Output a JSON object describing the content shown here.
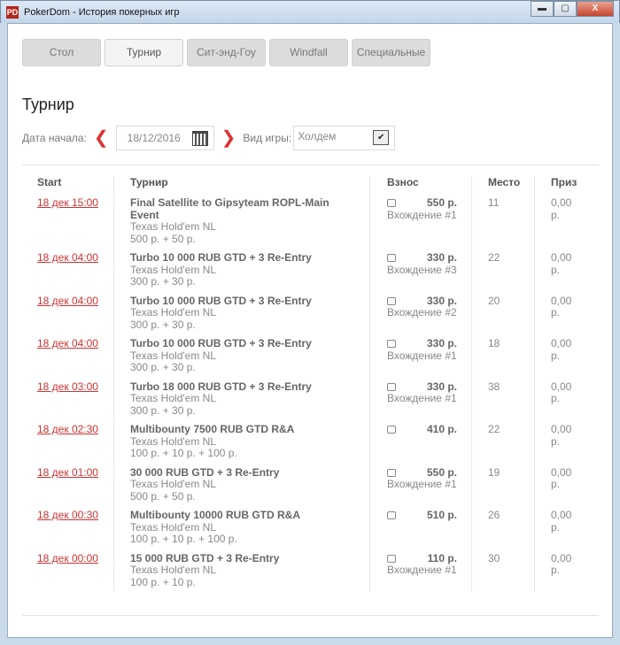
{
  "window": {
    "title": "PokerDom - История покерных игр"
  },
  "tabs": [
    {
      "label": "Стол"
    },
    {
      "label": "Турнир",
      "active": true
    },
    {
      "label": "Сит-энд-Гоу"
    },
    {
      "label": "Windfall"
    },
    {
      "label": "Специальные"
    }
  ],
  "heading": "Турнир",
  "filters": {
    "date_label": "Дата начала:",
    "date_value": "18/12/2016",
    "game_label": "Вид игры:",
    "game_value": "Холдем"
  },
  "columns": [
    "Start",
    "Турнир",
    "Взнос",
    "Место",
    "Приз"
  ],
  "rows": [
    {
      "start": "18 дек 15:00",
      "name": [
        "Final Satellite to Gipsyteam ROPL-Main",
        "Event"
      ],
      "game": "Texas Hold'em NL",
      "buyin": "500 р. + 50 р.",
      "fee": "550 р.",
      "entry": "Вхождение #1",
      "place": "11",
      "prize": [
        "0,00",
        "р."
      ]
    },
    {
      "start": "18 дек 04:00",
      "name": [
        "Turbo 10 000 RUB GTD + 3 Re-Entry"
      ],
      "game": "Texas Hold'em NL",
      "buyin": "300 р. + 30 р.",
      "fee": "330 р.",
      "entry": "Вхождение #3",
      "place": "22",
      "prize": [
        "0,00",
        "р."
      ]
    },
    {
      "start": "18 дек 04:00",
      "name": [
        "Turbo 10 000 RUB GTD + 3 Re-Entry"
      ],
      "game": "Texas Hold'em NL",
      "buyin": "300 р. + 30 р.",
      "fee": "330 р.",
      "entry": "Вхождение #2",
      "place": "20",
      "prize": [
        "0,00",
        "р."
      ]
    },
    {
      "start": "18 дек 04:00",
      "name": [
        "Turbo 10 000 RUB GTD + 3 Re-Entry"
      ],
      "game": "Texas Hold'em NL",
      "buyin": "300 р. + 30 р.",
      "fee": "330 р.",
      "entry": "Вхождение #1",
      "place": "18",
      "prize": [
        "0,00",
        "р."
      ]
    },
    {
      "start": "18 дек 03:00",
      "name": [
        "Turbo 18 000 RUB GTD + 3 Re-Entry"
      ],
      "game": "Texas Hold'em NL",
      "buyin": "300 р. + 30 р.",
      "fee": "330 р.",
      "entry": "Вхождение #1",
      "place": "38",
      "prize": [
        "0,00",
        "р."
      ]
    },
    {
      "start": "18 дек 02:30",
      "name": [
        "Multibounty 7500 RUB GTD R&A"
      ],
      "game": "Texas Hold'em NL",
      "buyin": "100 р. + 10 р. + 100 р.",
      "fee": "410 р.",
      "entry": "",
      "place": "22",
      "prize": [
        "0,00",
        "р."
      ]
    },
    {
      "start": "18 дек 01:00",
      "name": [
        "30 000 RUB GTD + 3 Re-Entry"
      ],
      "game": "Texas Hold'em NL",
      "buyin": "500 р. + 50 р.",
      "fee": "550 р.",
      "entry": "Вхождение #1",
      "place": "19",
      "prize": [
        "0,00",
        "р."
      ]
    },
    {
      "start": "18 дек 00:30",
      "name": [
        "Multibounty 10000 RUB GTD R&A"
      ],
      "game": "Texas Hold'em NL",
      "buyin": "100 р. + 10 р. + 100 р.",
      "fee": "510 р.",
      "entry": "",
      "place": "26",
      "prize": [
        "0,00",
        "р."
      ]
    },
    {
      "start": "18 дек 00:00",
      "name": [
        "15 000 RUB GTD + 3 Re-Entry"
      ],
      "game": "Texas Hold'em NL",
      "buyin": "100 р. + 10 р.",
      "fee": "110 р.",
      "entry": "Вхождение #1",
      "place": "30",
      "prize": [
        "0,00",
        "р."
      ]
    }
  ],
  "colors": {
    "accent": "#cc3333"
  }
}
